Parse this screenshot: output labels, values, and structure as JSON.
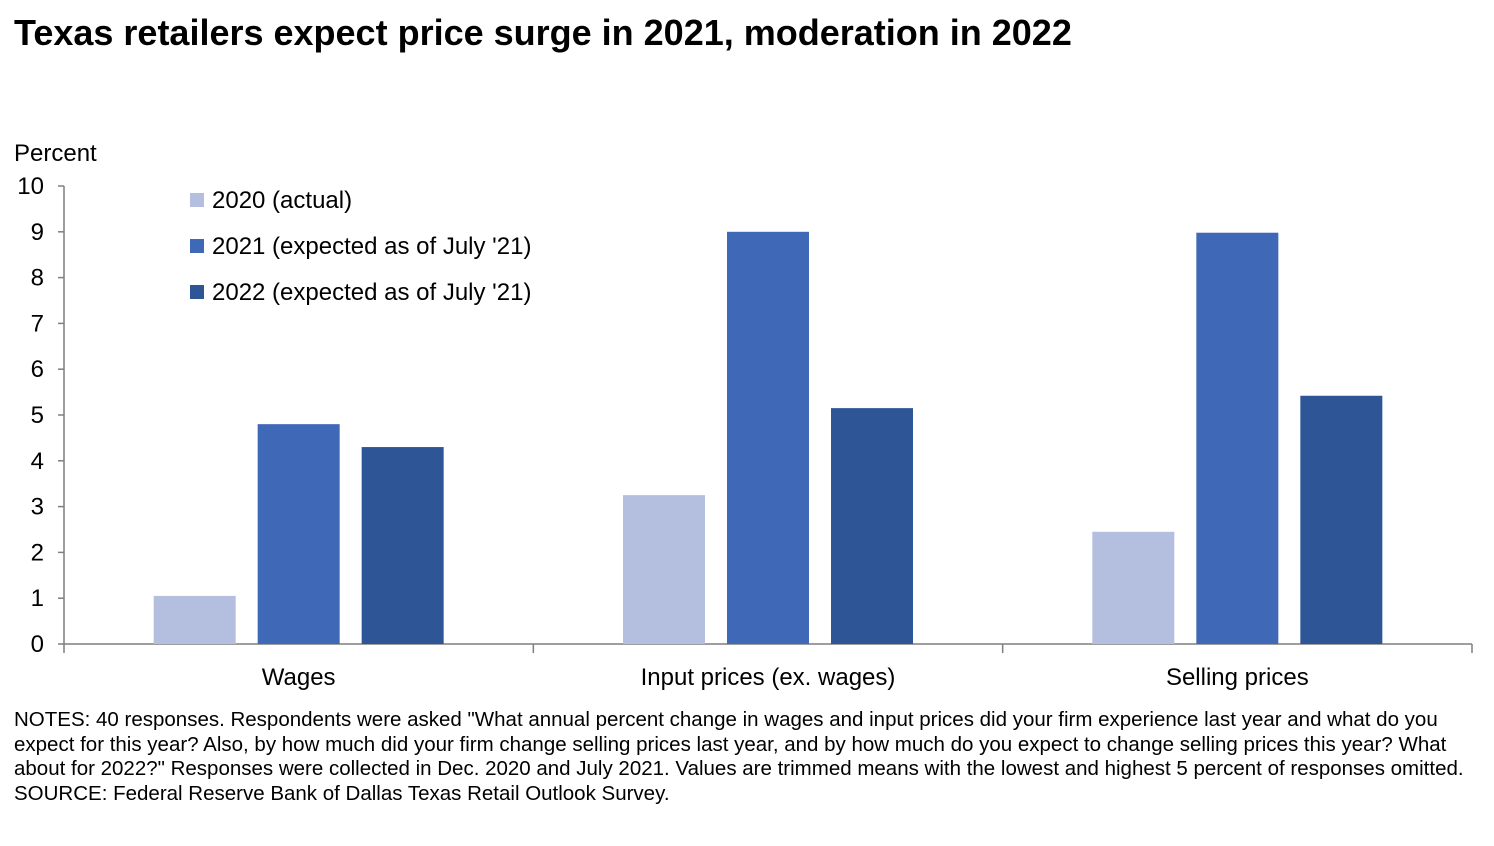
{
  "title": "Texas retailers expect price surge in 2021, moderation in 2022",
  "notes": "NOTES: 40 responses. Respondents were asked \"What annual percent change in wages and input prices did your firm experience last year and what do you expect for this year? Also, by how much did your firm change selling prices last year, and by how much do you expect to change selling prices this year? What about for 2022?\" Responses were collected in Dec. 2020 and July 2021. Values are trimmed means with the lowest and highest 5 percent of responses omitted.",
  "source": "SOURCE: Federal Reserve Bank of Dallas Texas Retail Outlook Survey.",
  "chart_data": {
    "type": "bar",
    "title": "Texas retailers expect price surge in 2021, moderation in 2022",
    "ylabel": "Percent",
    "xlabel": "",
    "ylim": [
      0,
      10
    ],
    "yticks": [
      0,
      1,
      2,
      3,
      4,
      5,
      6,
      7,
      8,
      9,
      10
    ],
    "categories": [
      "Wages",
      "Input prices (ex. wages)",
      "Selling prices"
    ],
    "series": [
      {
        "name": "2020 (actual)",
        "color": "#b4bfdf",
        "values": [
          1.05,
          3.25,
          2.45
        ]
      },
      {
        "name": "2021 (expected as of July '21)",
        "color": "#3f69b6",
        "values": [
          4.8,
          9.0,
          8.98
        ]
      },
      {
        "name": "2022 (expected as of July '21)",
        "color": "#2e5596",
        "values": [
          4.3,
          5.15,
          5.42
        ]
      }
    ],
    "legend_position": "top-left",
    "grid": false
  }
}
